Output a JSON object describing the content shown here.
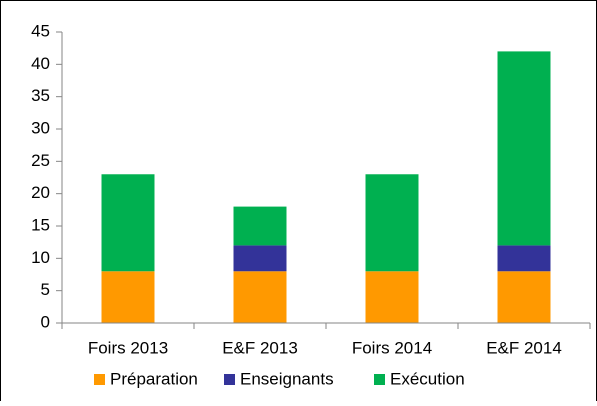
{
  "chart_data": {
    "type": "stacked_bar",
    "categories": [
      "Foirs 2013",
      "E&F 2013",
      "Foirs 2014",
      "E&F 2014"
    ],
    "series": [
      {
        "name": "Préparation",
        "color": "#ff9900",
        "values": [
          8,
          8,
          8,
          8
        ]
      },
      {
        "name": "Enseignants",
        "color": "#333399",
        "values": [
          0,
          4,
          0,
          4
        ]
      },
      {
        "name": "Exécution",
        "color": "#00b050",
        "values": [
          15,
          6,
          15,
          30
        ]
      }
    ],
    "ylim": [
      0,
      45
    ],
    "yticks": [
      0,
      5,
      10,
      15,
      20,
      25,
      30,
      35,
      40,
      45
    ],
    "grid": false,
    "legend": "bottom"
  }
}
